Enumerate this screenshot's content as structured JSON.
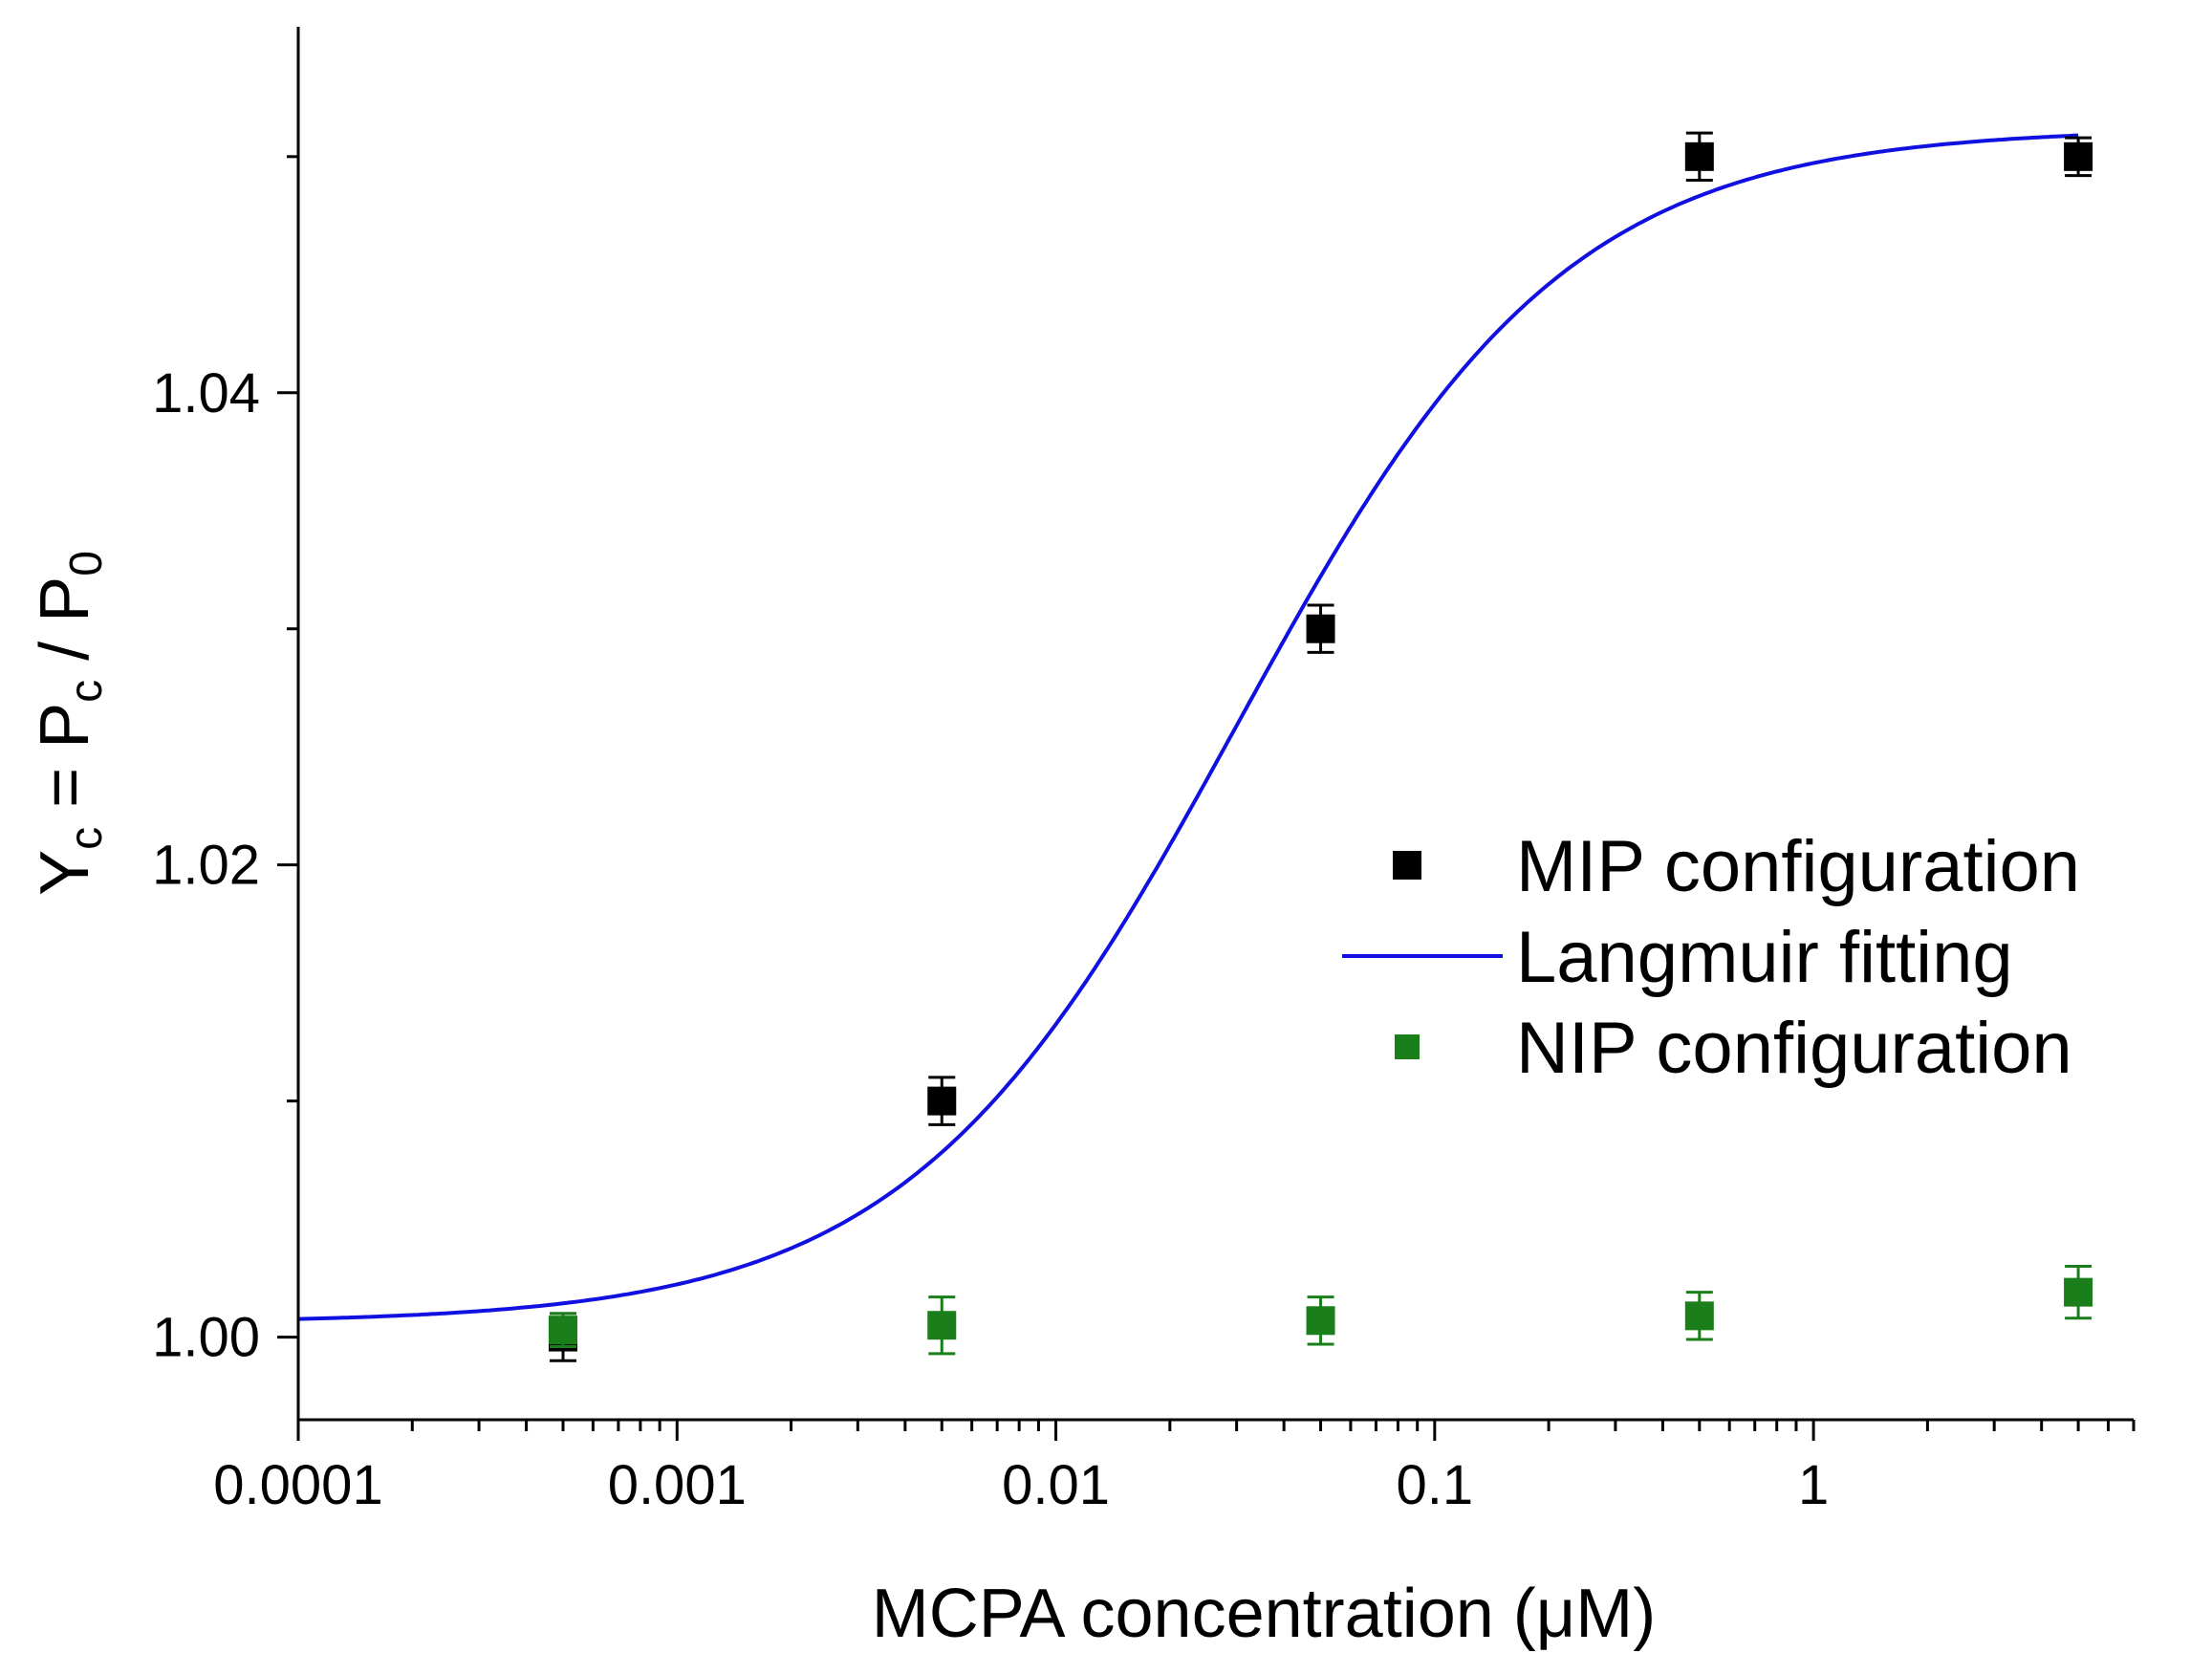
{
  "chart_data": {
    "type": "scatter",
    "title": "",
    "xlabel": "MCPA concentration (μM)",
    "ylabel": {
      "main": "Y",
      "sub1": "c",
      "mid": " = P",
      "sub2": "c",
      "mid2": " / P",
      "sub3": "0"
    },
    "x_scale": "log",
    "xlim": [
      0.0001,
      7
    ],
    "ylim": [
      0.9965,
      1.0555
    ],
    "x_ticks": [
      0.0001,
      0.001,
      0.01,
      0.1,
      1
    ],
    "x_tick_labels": [
      "0.0001",
      "0.001",
      "0.01",
      "0.1",
      "1"
    ],
    "y_ticks": [
      1.0,
      1.02,
      1.04
    ],
    "y_tick_labels": [
      "1.00",
      "1.02",
      "1.04"
    ],
    "y_minor_ticks": [
      1.01,
      1.03,
      1.05
    ],
    "series": [
      {
        "name": "MIP configuration",
        "kind": "points",
        "color": "#000000",
        "x": [
          0.0005,
          0.005,
          0.05,
          0.5,
          5
        ],
        "y": [
          1.0,
          1.01,
          1.03,
          1.05,
          1.05
        ],
        "err": [
          0.001,
          0.001,
          0.001,
          0.001,
          0.0008
        ]
      },
      {
        "name": "NIP configuration",
        "kind": "points",
        "color": "#1a7f1a",
        "x": [
          0.0005,
          0.005,
          0.05,
          0.5,
          5
        ],
        "y": [
          1.0003,
          1.0005,
          1.0007,
          1.0009,
          1.0019
        ],
        "err": [
          0.0007,
          0.0012,
          0.001,
          0.001,
          0.0011
        ]
      }
    ],
    "fit": {
      "name": "Langmuir fitting",
      "color": "#1010e0",
      "model": "y = y0 + A * x / (x + K)",
      "y0": 1.0006,
      "A": 0.0506,
      "K": 0.03
    },
    "legend": {
      "position": "right-middle",
      "entries": [
        {
          "label": "MIP configuration",
          "marker": "square",
          "color": "#000000"
        },
        {
          "label": "Langmuir fitting",
          "marker": "line",
          "color": "#1010e0"
        },
        {
          "label": "NIP configuration",
          "marker": "square",
          "color": "#1a7f1a"
        }
      ]
    }
  }
}
